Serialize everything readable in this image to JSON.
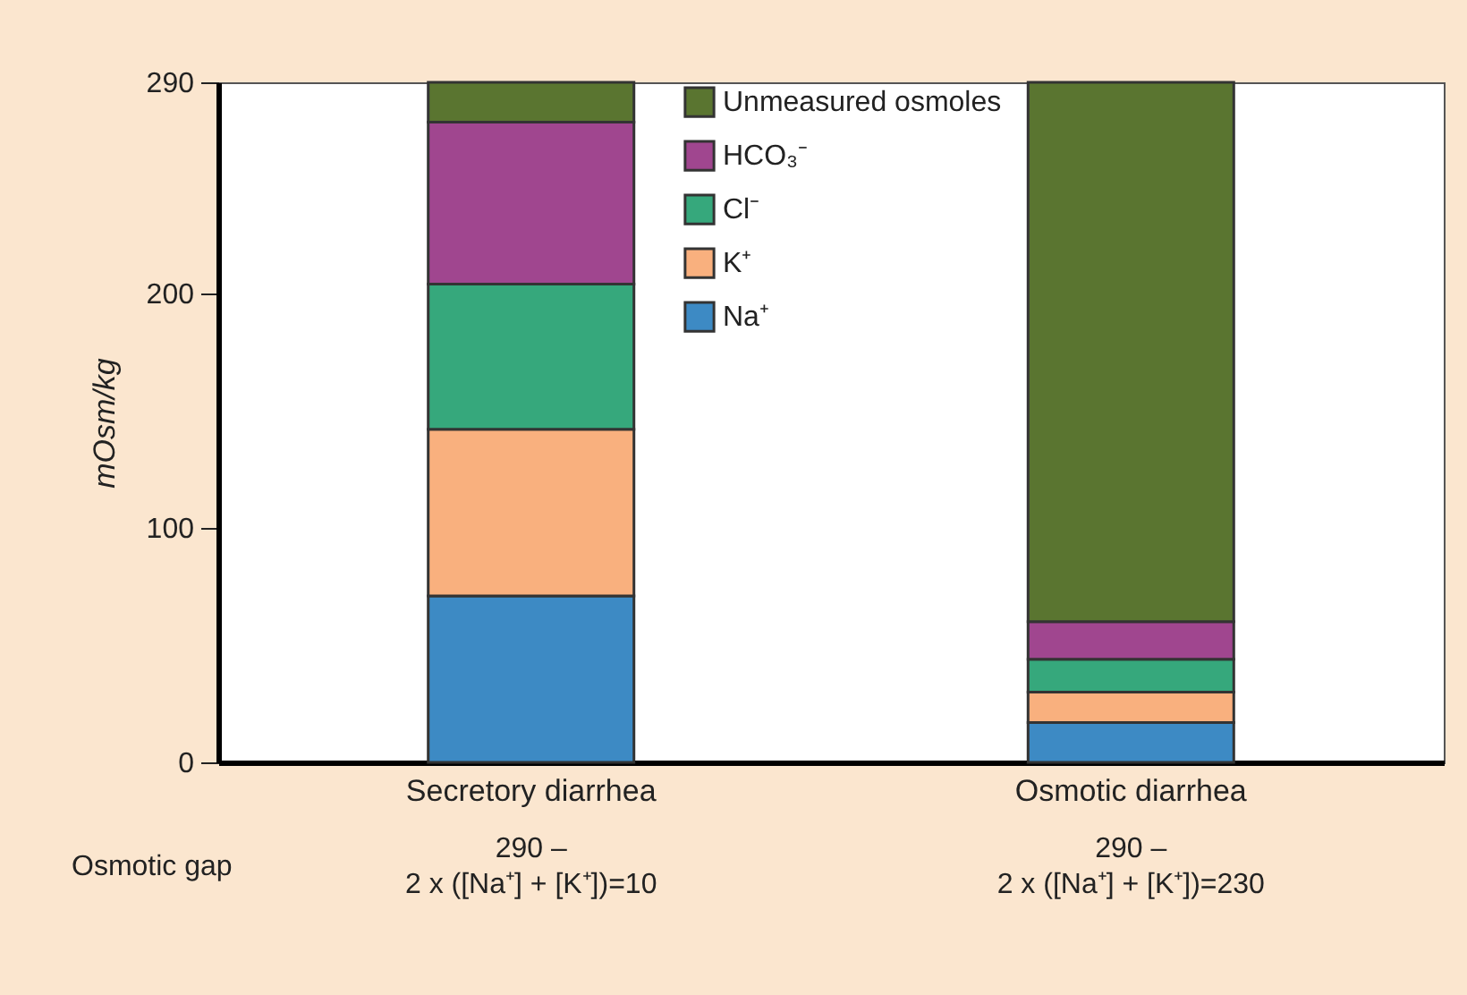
{
  "chart_data": {
    "type": "bar",
    "stacked": true,
    "ylabel": "mOsm/kg",
    "categories": [
      "Secretory diarrhea",
      "Osmotic diarrhea"
    ],
    "series": [
      {
        "name": "Na⁺",
        "color": "#3d8ac4",
        "values": [
          71,
          17
        ]
      },
      {
        "name": "K⁺",
        "color": "#f9b07e",
        "values": [
          71,
          13
        ]
      },
      {
        "name": "Cl⁻",
        "color": "#36a87c",
        "values": [
          62,
          14
        ]
      },
      {
        "name": "HCO₃⁻",
        "color": "#a0468f",
        "values": [
          69,
          16
        ]
      },
      {
        "name": "Unmeasured osmoles",
        "color": "#5a7530",
        "values": [
          17,
          230
        ]
      }
    ],
    "ylim": [
      0,
      290
    ],
    "yticks": [
      0,
      100,
      200,
      290
    ],
    "grid": false,
    "legend": "top",
    "annotations": [
      "Osmotic gap",
      "290 –\n2 x ([Na⁺] + [K⁺])=10",
      "290 –\n2 x ([Na⁺] + [K⁺])=230"
    ]
  }
}
